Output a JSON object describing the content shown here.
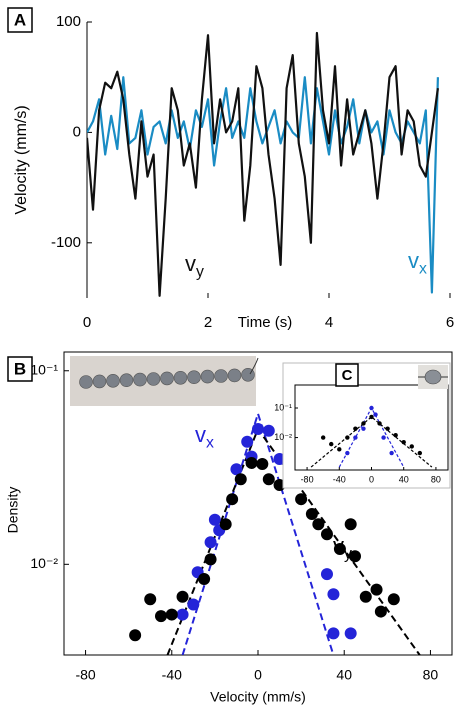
{
  "chart_data": [
    {
      "type": "line",
      "label": "A",
      "xlabel": "Time (s)",
      "ylabel": "Velocity (mm/s)",
      "xlim": [
        0,
        6
      ],
      "xticks": [
        0,
        2,
        4,
        6
      ],
      "ylim": [
        -150,
        100
      ],
      "yticks": [
        -100,
        0,
        100
      ],
      "x": [
        0,
        0.1,
        0.2,
        0.3,
        0.4,
        0.5,
        0.6,
        0.7,
        0.8,
        0.9,
        1,
        1.1,
        1.2,
        1.3,
        1.4,
        1.5,
        1.6,
        1.7,
        1.8,
        1.9,
        2,
        2.1,
        2.2,
        2.3,
        2.4,
        2.5,
        2.6,
        2.7,
        2.8,
        2.9,
        3,
        3.1,
        3.2,
        3.3,
        3.4,
        3.5,
        3.6,
        3.7,
        3.8,
        3.9,
        4,
        4.1,
        4.2,
        4.3,
        4.4,
        4.5,
        4.6,
        4.7,
        4.8,
        4.9,
        5,
        5.1,
        5.2,
        5.3,
        5.4,
        5.5,
        5.6,
        5.7,
        5.8
      ],
      "series": [
        {
          "name": "vx",
          "color": "#1a8cc4",
          "values": [
            0,
            10,
            30,
            -20,
            15,
            -15,
            50,
            -10,
            -5,
            20,
            -20,
            5,
            10,
            -10,
            20,
            -5,
            10,
            -15,
            20,
            5,
            30,
            -30,
            10,
            40,
            -5,
            10,
            -5,
            40,
            10,
            -10,
            5,
            20,
            -10,
            10,
            0,
            -5,
            50,
            -10,
            40,
            10,
            -20,
            20,
            -10,
            5,
            30,
            -10,
            20,
            0,
            10,
            -20,
            20,
            0,
            -10,
            10,
            0,
            -10,
            20,
            -145,
            50
          ]
        },
        {
          "name": "vy",
          "color": "#111111",
          "values": [
            -5,
            -70,
            20,
            45,
            40,
            55,
            30,
            -20,
            -60,
            10,
            -40,
            -20,
            -148,
            -60,
            40,
            20,
            -30,
            -10,
            -50,
            30,
            88,
            -10,
            30,
            0,
            10,
            40,
            -80,
            -30,
            60,
            40,
            -20,
            -60,
            -120,
            40,
            70,
            -10,
            -40,
            -100,
            90,
            20,
            -10,
            60,
            -30,
            30,
            -20,
            0,
            20,
            -10,
            -60,
            -10,
            50,
            60,
            -20,
            20,
            10,
            -30,
            -40,
            0,
            40
          ]
        }
      ]
    },
    {
      "type": "scatter",
      "label": "B",
      "xlabel": "Velocity (mm/s)",
      "ylabel": "Density",
      "ylog": true,
      "xlim": [
        -90,
        90
      ],
      "xticks": [
        -80,
        -40,
        0,
        40,
        80
      ],
      "ylim": [
        0.0034,
        0.125
      ],
      "yticks": [
        {
          "value": 0.01,
          "label": "10⁻²"
        },
        {
          "value": 0.1,
          "label": "10⁻¹"
        }
      ],
      "series": [
        {
          "name": "vx",
          "color": "#2424d8",
          "x": [
            -35,
            -30,
            -28,
            -22,
            -20,
            -18,
            -10,
            -5,
            -3,
            0,
            5,
            10,
            32,
            35,
            35,
            43
          ],
          "values": [
            0.0055,
            0.0062,
            0.0091,
            0.013,
            0.017,
            0.015,
            0.031,
            0.043,
            0.036,
            0.05,
            0.049,
            0.035,
            0.0089,
            0.007,
            0.0044,
            0.0044
          ]
        },
        {
          "name": "vy",
          "color": "#000000",
          "x": [
            -57,
            -50,
            -45,
            -40,
            -35,
            -25,
            -22,
            -15,
            -12,
            -8,
            -3,
            2,
            5,
            10,
            15,
            20,
            25,
            28,
            32,
            38,
            43,
            45,
            50,
            55,
            57,
            63
          ],
          "values": [
            0.0043,
            0.0066,
            0.0054,
            0.0055,
            0.0068,
            0.0084,
            0.0106,
            0.0161,
            0.0217,
            0.0275,
            0.0334,
            0.033,
            0.0275,
            0.0257,
            0.0334,
            0.0217,
            0.0182,
            0.0161,
            0.0143,
            0.012,
            0.0161,
            0.011,
            0.0068,
            0.0074,
            0.0057,
            0.0066
          ]
        }
      ],
      "fits": [
        {
          "color": "#2424d8",
          "x": [
            -35,
            0,
            35
          ],
          "values": [
            0.0034,
            0.06,
            0.0034
          ]
        },
        {
          "color": "#000000",
          "x": [
            -42,
            0,
            75
          ],
          "values": [
            0.0034,
            0.05,
            0.0034
          ]
        }
      ]
    },
    {
      "type": "scatter",
      "label": "C",
      "ylog": true,
      "xlim": [
        -95,
        95
      ],
      "xticks": [
        -80,
        -40,
        0,
        40,
        80
      ],
      "ylim": [
        0.0008,
        0.6
      ],
      "yticks": [
        {
          "value": 0.01,
          "label": "10⁻²"
        },
        {
          "value": 0.1,
          "label": "10⁻¹"
        }
      ],
      "series": [
        {
          "color": "#000000",
          "x": [
            -60,
            -50,
            -40,
            -30,
            -20,
            -10,
            0,
            10,
            20,
            30,
            40,
            50,
            60
          ],
          "values": [
            0.01,
            0.006,
            0.004,
            0.01,
            0.02,
            0.03,
            0.05,
            0.03,
            0.02,
            0.012,
            0.007,
            0.005,
            0.003
          ]
        },
        {
          "color": "#2424d8",
          "x": [
            -30,
            -20,
            -10,
            0,
            5,
            15,
            25
          ],
          "values": [
            0.003,
            0.01,
            0.02,
            0.1,
            0.06,
            0.01,
            0.003
          ]
        }
      ],
      "fits": [
        {
          "color": "#2424d8",
          "x": [
            -40,
            0,
            40
          ],
          "values": [
            0.001,
            0.1,
            0.001
          ]
        },
        {
          "color": "#000000",
          "x": [
            -75,
            0,
            75
          ],
          "values": [
            0.001,
            0.05,
            0.001
          ]
        }
      ]
    }
  ]
}
